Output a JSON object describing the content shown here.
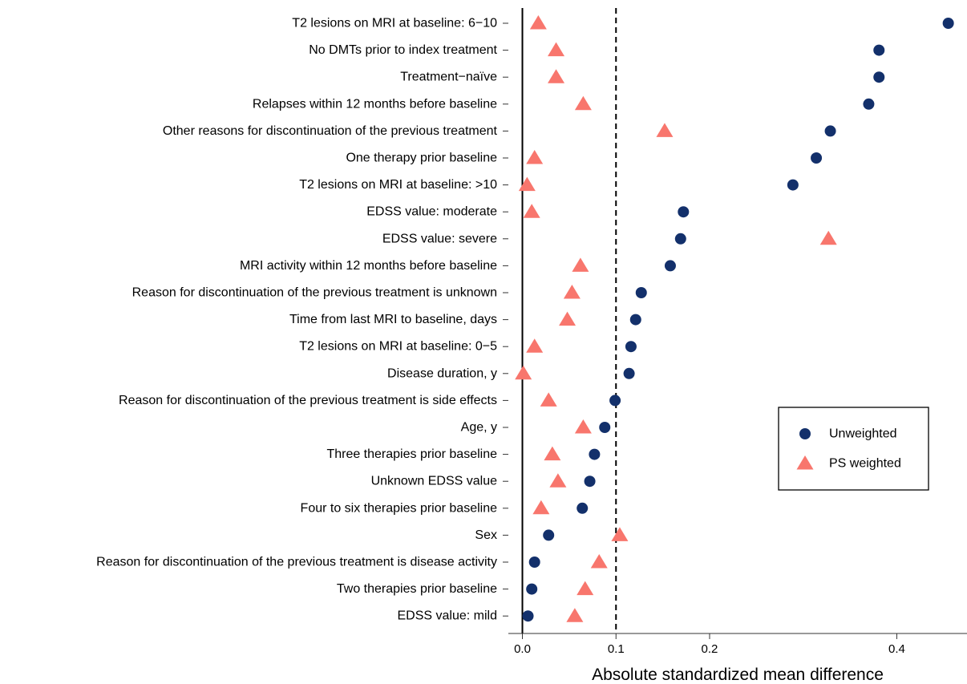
{
  "chart_data": {
    "type": "scatter",
    "title": "",
    "xlabel": "Absolute standardized mean difference",
    "ylabel": "",
    "xlim": [
      -0.015,
      0.475
    ],
    "x_ticks": [
      0.0,
      0.1,
      0.2,
      0.4
    ],
    "x_tick_labels": [
      "0.0",
      "0.1",
      "0.2",
      "0.4"
    ],
    "reference_lines": [
      {
        "x": 0.0,
        "style": "solid"
      },
      {
        "x": 0.1,
        "style": "dashed"
      }
    ],
    "grid": false,
    "legend_position": "bottom-right",
    "categories": [
      "T2 lesions on MRI at baseline: 6−10",
      "No DMTs prior to index treatment",
      "Treatment−naïve",
      "Relapses within 12 months before baseline",
      "Other reasons for discontinuation of the previous treatment",
      "One therapy prior baseline",
      "T2 lesions on MRI at baseline: >10",
      "EDSS value: moderate",
      "EDSS value: severe",
      "MRI activity within 12 months before baseline",
      "Reason for discontinuation of the previous treatment is unknown",
      "Time from last MRI to baseline, days",
      "T2 lesions on MRI at baseline: 0−5",
      "Disease duration, y",
      "Reason for discontinuation of the previous treatment is side effects",
      "Age, y",
      "Three therapies prior baseline",
      "Unknown EDSS value",
      "Four to six therapies prior baseline",
      "Sex",
      "Reason for discontinuation of the previous treatment is disease activity",
      "Two therapies prior baseline",
      "EDSS value: mild"
    ],
    "series": [
      {
        "name": "Unweighted",
        "marker": "circle",
        "color": "#13306b",
        "values": [
          0.455,
          0.381,
          0.381,
          0.37,
          0.329,
          0.314,
          0.289,
          0.172,
          0.169,
          0.158,
          0.127,
          0.121,
          0.116,
          0.114,
          0.099,
          0.088,
          0.077,
          0.072,
          0.064,
          0.028,
          0.013,
          0.01,
          0.006
        ]
      },
      {
        "name": "PS weighted",
        "marker": "triangle",
        "color": "#f8766d",
        "values": [
          0.017,
          0.036,
          0.036,
          0.065,
          0.152,
          0.013,
          0.005,
          0.01,
          0.327,
          0.062,
          0.053,
          0.048,
          0.013,
          0.001,
          0.028,
          0.065,
          0.032,
          0.038,
          0.02,
          0.104,
          0.082,
          0.067,
          0.056
        ]
      }
    ]
  }
}
